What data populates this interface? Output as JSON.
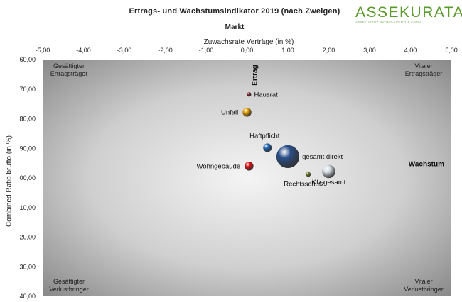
{
  "header": {
    "title": "Ertrags- und Wachstumsindikator 2019 (nach Zweigen)",
    "subtitle": "Markt"
  },
  "logo": {
    "word": "ASSEKURATA",
    "tagline": "ASSEKURANZ RATING-AGENTUR GMBH",
    "color": "#5a9a2a"
  },
  "chart_data": {
    "type": "scatter",
    "variant": "bubble",
    "xlabel": "Zuwachsrate Verträge (in %)",
    "ylabel": "Combined Ratio brutto (in %)",
    "xlim": [
      -5,
      5
    ],
    "ylim": [
      60,
      140
    ],
    "y_inverted": true,
    "x_ticks": [
      "-5,00",
      "-4,00",
      "-3,00",
      "-2,00",
      "-1,00",
      "0,00",
      "1,00",
      "2,00",
      "3,00",
      "4,00",
      "5,00"
    ],
    "y_ticks": [
      "60,00",
      "70,00",
      "80,00",
      "90,00",
      "00,00",
      "10,00",
      "20,00",
      "30,00",
      "40,00"
    ],
    "x_axis_position": "top",
    "grid": false,
    "vertical_axis_word": "Ertrag",
    "horizontal_axis_word": "Wachstum",
    "quadrants": {
      "top_left": [
        "Gesättigter",
        "Ertragsträger"
      ],
      "top_right": [
        "Vitaler",
        "Ertragsträger"
      ],
      "bottom_left": [
        "Gesättigter",
        "Verlustbringer"
      ],
      "bottom_right": [
        "Vitaler",
        "Verlustbringer"
      ]
    },
    "points": [
      {
        "label": "Hausrat",
        "x": 0.05,
        "y": 71.8,
        "size": 1.2,
        "color": "#7a1e28",
        "label_pos": "right"
      },
      {
        "label": "Unfall",
        "x": 0.0,
        "y": 77.8,
        "size": 2.4,
        "color": "#e8a200",
        "label_pos": "left"
      },
      {
        "label": "Haftpflicht",
        "x": 0.5,
        "y": 89.8,
        "size": 2.3,
        "color": "#1e64b4",
        "label_pos": "top-left"
      },
      {
        "label": "gesamt direkt",
        "x": 1.0,
        "y": 92.8,
        "size": 6.2,
        "color": "#2a4f8a",
        "label_pos": "right"
      },
      {
        "label": "Wohngebäude",
        "x": 0.05,
        "y": 96.0,
        "size": 2.4,
        "color": "#e01010",
        "label_pos": "left"
      },
      {
        "label": "Rechtsschutz",
        "x": 1.5,
        "y": 98.8,
        "size": 1.3,
        "color": "#6b7a20",
        "label_pos": "bottom-left"
      },
      {
        "label": "Kfz gesamt",
        "x": 2.0,
        "y": 97.8,
        "size": 3.6,
        "color": "#d4dde4",
        "label_pos": "bottom"
      }
    ]
  }
}
